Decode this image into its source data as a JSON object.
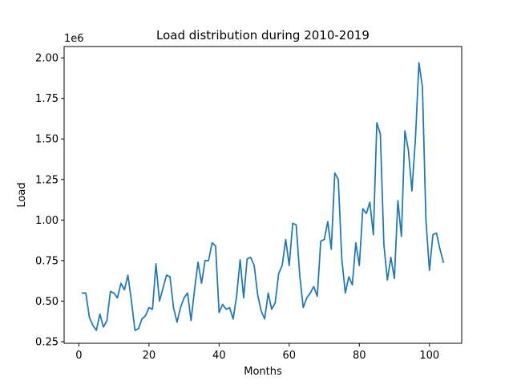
{
  "chart_data": {
    "type": "line",
    "title": "Load distribution during 2010-2019",
    "xlabel": "Months",
    "ylabel": "Load",
    "y_offset_label": "1e6",
    "xlim": [
      -4.2,
      109.2
    ],
    "ylim": [
      0.24,
      2.07
    ],
    "x_ticks": [
      0,
      20,
      40,
      60,
      80,
      100
    ],
    "y_ticks": [
      0.25,
      0.5,
      0.75,
      1.0,
      1.25,
      1.5,
      1.75,
      2.0
    ],
    "y_tick_labels": [
      "0.25",
      "0.50",
      "0.75",
      "1.00",
      "1.25",
      "1.50",
      "1.75",
      "2.00"
    ],
    "grid": false,
    "line_color": "#1f77b4",
    "series": [
      {
        "x": [
          1,
          2,
          3,
          4,
          5,
          6,
          7,
          8,
          9,
          10,
          11,
          12,
          13,
          14,
          15,
          16,
          17,
          18,
          19,
          20,
          21,
          22,
          23,
          24,
          25,
          26,
          27,
          28,
          29,
          30,
          31,
          32,
          33,
          34,
          35,
          36,
          37,
          38,
          39,
          40,
          41,
          42,
          43,
          44,
          45,
          46,
          47,
          48,
          49,
          50,
          51,
          52,
          53,
          54,
          55,
          56,
          57,
          58,
          59,
          60,
          61,
          62,
          63,
          64,
          65,
          66,
          67,
          68,
          69,
          70,
          71,
          72,
          73,
          74,
          75,
          76,
          77,
          78,
          79,
          80,
          81,
          82,
          83,
          84,
          85,
          86,
          87,
          88,
          89,
          90,
          91,
          92,
          93,
          94,
          95,
          96,
          97,
          98,
          99,
          100,
          101,
          102,
          103,
          104
        ],
        "values": [
          0.55,
          0.55,
          0.4,
          0.35,
          0.32,
          0.42,
          0.34,
          0.38,
          0.56,
          0.55,
          0.52,
          0.61,
          0.57,
          0.66,
          0.5,
          0.32,
          0.33,
          0.39,
          0.41,
          0.46,
          0.45,
          0.73,
          0.5,
          0.58,
          0.66,
          0.65,
          0.46,
          0.37,
          0.46,
          0.52,
          0.55,
          0.38,
          0.57,
          0.74,
          0.61,
          0.75,
          0.75,
          0.86,
          0.84,
          0.43,
          0.48,
          0.45,
          0.46,
          0.39,
          0.53,
          0.755,
          0.52,
          0.76,
          0.77,
          0.72,
          0.54,
          0.44,
          0.39,
          0.55,
          0.45,
          0.49,
          0.67,
          0.72,
          0.88,
          0.72,
          0.98,
          0.97,
          0.66,
          0.46,
          0.52,
          0.55,
          0.59,
          0.53,
          0.87,
          0.88,
          0.99,
          0.82,
          1.29,
          1.25,
          0.76,
          0.55,
          0.65,
          0.6,
          0.86,
          0.72,
          1.07,
          1.04,
          1.11,
          0.91,
          1.6,
          1.53,
          0.85,
          0.63,
          0.77,
          0.64,
          1.12,
          0.9,
          1.55,
          1.43,
          1.18,
          1.5,
          1.97,
          1.82,
          1.0,
          0.69,
          0.91,
          0.92,
          0.82,
          0.74
        ]
      }
    ]
  }
}
